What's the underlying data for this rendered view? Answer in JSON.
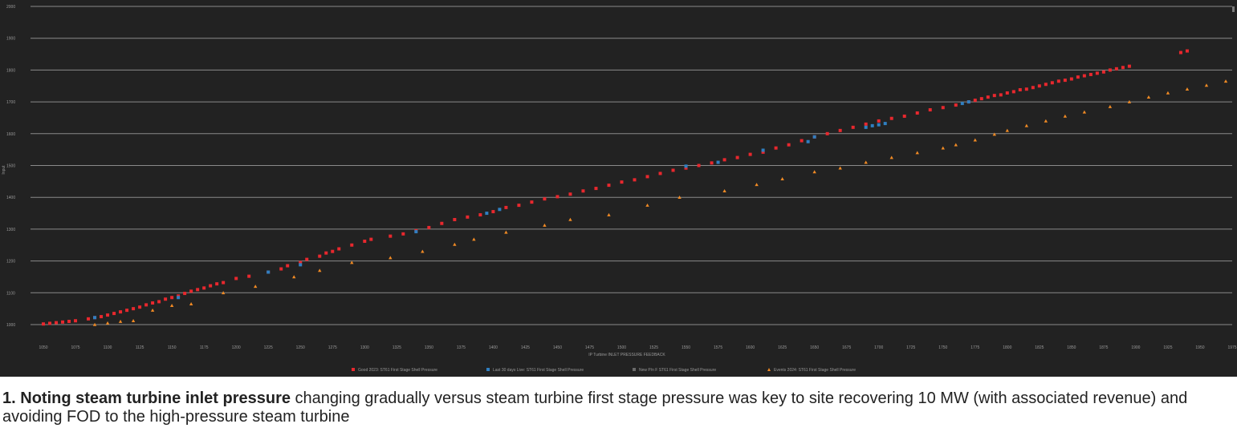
{
  "caption": {
    "number": "1.",
    "bold": "Noting steam turbine inlet pressure",
    "rest": "changing gradually versus steam turbine first stage pressure was key to site recovering 10 MW (with associated revenue) and avoiding FOD to the high-pressure steam turbine"
  },
  "chart_data": {
    "type": "scatter",
    "xlabel": "IP Turbine INLET PRESSURE FEEDBACK",
    "ylabel": "Input",
    "xlim": [
      1040,
      1975
    ],
    "ylim": [
      1000,
      2000
    ],
    "x_ticks": [
      "1050",
      "1075",
      "1100",
      "1125",
      "1150",
      "1175",
      "1200",
      "1225",
      "1250",
      "1275",
      "1300",
      "1325",
      "1350",
      "1375",
      "1400",
      "1425",
      "1450",
      "1475",
      "1500",
      "1525",
      "1550",
      "1575",
      "1600",
      "1625",
      "1650",
      "1675",
      "1700",
      "1725",
      "1750",
      "1775",
      "1800",
      "1825",
      "1850",
      "1875",
      "1900",
      "1925",
      "1950",
      "1975"
    ],
    "y_ticks": [
      "1000",
      "1100",
      "1200",
      "1300",
      "1400",
      "1500",
      "1600",
      "1700",
      "1800",
      "1900",
      "2000"
    ],
    "grid": true,
    "legend_position": "bottom",
    "series": [
      {
        "name": "Good 2023: ST61 First Stage Shell Pressure",
        "color": "#e8282e",
        "marker": "square",
        "points": [
          [
            1050,
            1002
          ],
          [
            1055,
            1004
          ],
          [
            1060,
            1006
          ],
          [
            1065,
            1008
          ],
          [
            1070,
            1010
          ],
          [
            1075,
            1012
          ],
          [
            1085,
            1018
          ],
          [
            1090,
            1022
          ],
          [
            1095,
            1025
          ],
          [
            1100,
            1030
          ],
          [
            1105,
            1035
          ],
          [
            1110,
            1040
          ],
          [
            1115,
            1045
          ],
          [
            1120,
            1050
          ],
          [
            1125,
            1055
          ],
          [
            1130,
            1062
          ],
          [
            1135,
            1068
          ],
          [
            1140,
            1072
          ],
          [
            1145,
            1080
          ],
          [
            1150,
            1085
          ],
          [
            1155,
            1090
          ],
          [
            1160,
            1098
          ],
          [
            1165,
            1105
          ],
          [
            1170,
            1110
          ],
          [
            1175,
            1115
          ],
          [
            1180,
            1122
          ],
          [
            1185,
            1128
          ],
          [
            1190,
            1132
          ],
          [
            1200,
            1145
          ],
          [
            1210,
            1152
          ],
          [
            1225,
            1165
          ],
          [
            1235,
            1175
          ],
          [
            1240,
            1185
          ],
          [
            1250,
            1195
          ],
          [
            1255,
            1205
          ],
          [
            1265,
            1215
          ],
          [
            1270,
            1225
          ],
          [
            1275,
            1230
          ],
          [
            1280,
            1238
          ],
          [
            1290,
            1250
          ],
          [
            1300,
            1262
          ],
          [
            1305,
            1268
          ],
          [
            1320,
            1278
          ],
          [
            1330,
            1285
          ],
          [
            1340,
            1295
          ],
          [
            1350,
            1305
          ],
          [
            1360,
            1318
          ],
          [
            1370,
            1330
          ],
          [
            1380,
            1338
          ],
          [
            1390,
            1345
          ],
          [
            1400,
            1355
          ],
          [
            1410,
            1368
          ],
          [
            1420,
            1375
          ],
          [
            1430,
            1385
          ],
          [
            1440,
            1395
          ],
          [
            1450,
            1402
          ],
          [
            1460,
            1410
          ],
          [
            1470,
            1420
          ],
          [
            1480,
            1428
          ],
          [
            1490,
            1438
          ],
          [
            1500,
            1448
          ],
          [
            1510,
            1455
          ],
          [
            1520,
            1465
          ],
          [
            1530,
            1475
          ],
          [
            1540,
            1485
          ],
          [
            1550,
            1492
          ],
          [
            1560,
            1500
          ],
          [
            1570,
            1508
          ],
          [
            1580,
            1518
          ],
          [
            1590,
            1525
          ],
          [
            1600,
            1535
          ],
          [
            1610,
            1542
          ],
          [
            1620,
            1555
          ],
          [
            1630,
            1565
          ],
          [
            1640,
            1578
          ],
          [
            1650,
            1590
          ],
          [
            1660,
            1600
          ],
          [
            1670,
            1610
          ],
          [
            1680,
            1620
          ],
          [
            1690,
            1630
          ],
          [
            1700,
            1640
          ],
          [
            1710,
            1648
          ],
          [
            1720,
            1655
          ],
          [
            1730,
            1665
          ],
          [
            1740,
            1675
          ],
          [
            1750,
            1682
          ],
          [
            1760,
            1690
          ],
          [
            1770,
            1700
          ],
          [
            1775,
            1705
          ],
          [
            1780,
            1710
          ],
          [
            1785,
            1715
          ],
          [
            1790,
            1720
          ],
          [
            1795,
            1722
          ],
          [
            1800,
            1728
          ],
          [
            1805,
            1732
          ],
          [
            1810,
            1738
          ],
          [
            1815,
            1740
          ],
          [
            1820,
            1745
          ],
          [
            1825,
            1750
          ],
          [
            1830,
            1755
          ],
          [
            1835,
            1760
          ],
          [
            1840,
            1765
          ],
          [
            1845,
            1768
          ],
          [
            1850,
            1772
          ],
          [
            1855,
            1778
          ],
          [
            1860,
            1782
          ],
          [
            1865,
            1786
          ],
          [
            1870,
            1790
          ],
          [
            1875,
            1794
          ],
          [
            1880,
            1800
          ],
          [
            1885,
            1804
          ],
          [
            1890,
            1808
          ],
          [
            1895,
            1812
          ],
          [
            1935,
            1855
          ],
          [
            1940,
            1860
          ]
        ]
      },
      {
        "name": "Last 30 days Live: ST61 First Stage Shell Pressure",
        "color": "#2f7fc1",
        "marker": "square",
        "points": [
          [
            1090,
            1022
          ],
          [
            1155,
            1085
          ],
          [
            1225,
            1165
          ],
          [
            1250,
            1188
          ],
          [
            1340,
            1292
          ],
          [
            1395,
            1350
          ],
          [
            1405,
            1362
          ],
          [
            1550,
            1498
          ],
          [
            1575,
            1510
          ],
          [
            1610,
            1548
          ],
          [
            1645,
            1575
          ],
          [
            1650,
            1590
          ],
          [
            1690,
            1620
          ],
          [
            1695,
            1625
          ],
          [
            1700,
            1628
          ],
          [
            1705,
            1632
          ],
          [
            1765,
            1695
          ],
          [
            1770,
            1700
          ]
        ]
      },
      {
        "name": "New P/n F ST61 First Stage Shell Pressure",
        "color": "#6a6a6a",
        "marker": "square",
        "points": []
      },
      {
        "name": "Events 2024: ST61 First Stage Shell Pressure",
        "color": "#f08a24",
        "marker": "triangle",
        "points": [
          [
            1090,
            1000
          ],
          [
            1100,
            1005
          ],
          [
            1110,
            1010
          ],
          [
            1120,
            1012
          ],
          [
            1135,
            1045
          ],
          [
            1150,
            1060
          ],
          [
            1165,
            1065
          ],
          [
            1190,
            1100
          ],
          [
            1215,
            1120
          ],
          [
            1245,
            1150
          ],
          [
            1265,
            1170
          ],
          [
            1290,
            1195
          ],
          [
            1320,
            1210
          ],
          [
            1345,
            1230
          ],
          [
            1370,
            1252
          ],
          [
            1385,
            1268
          ],
          [
            1410,
            1290
          ],
          [
            1440,
            1312
          ],
          [
            1460,
            1330
          ],
          [
            1490,
            1345
          ],
          [
            1520,
            1375
          ],
          [
            1545,
            1400
          ],
          [
            1580,
            1420
          ],
          [
            1605,
            1440
          ],
          [
            1625,
            1458
          ],
          [
            1650,
            1480
          ],
          [
            1670,
            1492
          ],
          [
            1690,
            1510
          ],
          [
            1710,
            1525
          ],
          [
            1730,
            1540
          ],
          [
            1750,
            1555
          ],
          [
            1760,
            1565
          ],
          [
            1775,
            1580
          ],
          [
            1790,
            1598
          ],
          [
            1800,
            1610
          ],
          [
            1815,
            1625
          ],
          [
            1830,
            1640
          ],
          [
            1845,
            1655
          ],
          [
            1860,
            1668
          ],
          [
            1880,
            1685
          ],
          [
            1895,
            1700
          ],
          [
            1910,
            1715
          ],
          [
            1925,
            1728
          ],
          [
            1940,
            1740
          ],
          [
            1955,
            1752
          ],
          [
            1970,
            1765
          ]
        ]
      }
    ]
  }
}
